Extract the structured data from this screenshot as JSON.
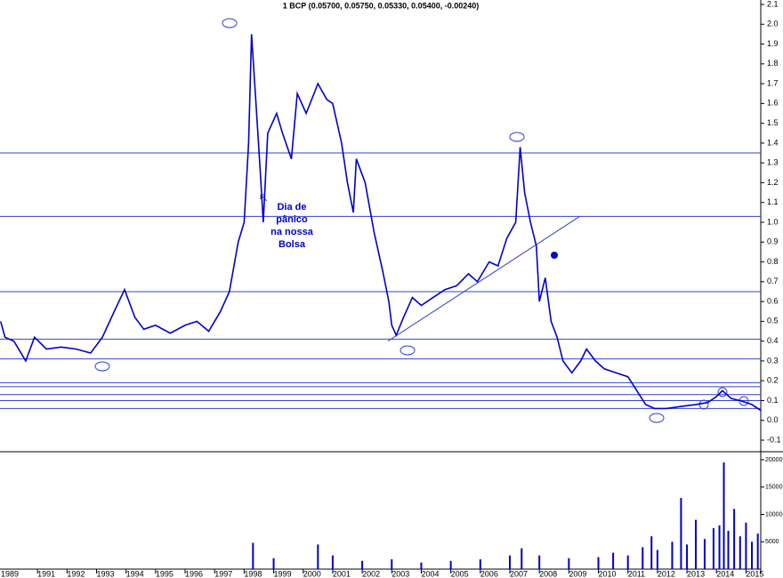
{
  "chart_data": [
    {
      "type": "line",
      "title": "1 BCP (0.05700, 0.05750, 0.05330, 0.05400, -0.00240)",
      "xlim": [
        1989.73,
        2015.5
      ],
      "xticks": [
        1989,
        1991,
        1992,
        1993,
        1994,
        1995,
        1996,
        1997,
        1998,
        1999,
        2000,
        2001,
        2002,
        2003,
        2004,
        2005,
        2006,
        2007,
        2008,
        2009,
        2010,
        2011,
        2012,
        2013,
        2014,
        2015
      ],
      "ylim": [
        -0.1,
        2.1
      ],
      "yticks": [
        2.1,
        {
          "value": 2,
          "label": "2.0"
        },
        1.9,
        1.8,
        1.7,
        1.6,
        1.5,
        1.4,
        1.3,
        1.2,
        1.1,
        {
          "value": 1,
          "label": "1.0"
        },
        0.9,
        0.8,
        0.7,
        0.6,
        0.5,
        0.4,
        0.3,
        0.2,
        0.1,
        {
          "value": 0,
          "label": "0.0"
        },
        -0.1
      ],
      "series": [
        {
          "color": "#0000cc",
          "x": [
            1989.75,
            1989.9,
            1990.2,
            1990.6,
            1990.9,
            1991.3,
            1991.8,
            1992.3,
            1992.8,
            1993.2,
            1993.6,
            1993.95,
            1994.3,
            1994.6,
            1995.0,
            1995.5,
            1996.0,
            1996.4,
            1996.8,
            1997.2,
            1997.5,
            1997.8,
            1998.0,
            1998.15,
            1998.25,
            1998.4,
            1998.55,
            1998.65,
            1998.8,
            1999.1,
            1999.3,
            1999.6,
            1999.8,
            2000.1,
            2000.5,
            2000.8,
            2001.0,
            2001.3,
            2001.5,
            2001.7,
            2001.8,
            2002.1,
            2002.4,
            2002.7,
            2002.9,
            2003.0,
            2003.15,
            2003.4,
            2003.7,
            2004.0,
            2004.4,
            2004.8,
            2005.2,
            2005.6,
            2005.9,
            2006.3,
            2006.6,
            2006.9,
            2007.2,
            2007.35,
            2007.5,
            2007.7,
            2007.9,
            2008.0,
            2008.2,
            2008.4,
            2008.6,
            2008.8,
            2009.1,
            2009.4,
            2009.6,
            2009.9,
            2010.2,
            2010.6,
            2011.0,
            2011.3,
            2011.6,
            2011.9,
            2012.3,
            2012.8,
            2013.3,
            2013.7,
            2014.0,
            2014.2,
            2014.5,
            2014.8,
            2015.2,
            2015.5
          ],
          "values": [
            0.5,
            0.42,
            0.4,
            0.3,
            0.42,
            0.36,
            0.37,
            0.36,
            0.34,
            0.42,
            0.55,
            0.66,
            0.52,
            0.46,
            0.48,
            0.44,
            0.48,
            0.5,
            0.45,
            0.55,
            0.65,
            0.9,
            1.0,
            1.4,
            1.95,
            1.6,
            1.25,
            1.0,
            1.45,
            1.55,
            1.45,
            1.32,
            1.65,
            1.55,
            1.7,
            1.62,
            1.6,
            1.4,
            1.2,
            1.05,
            1.32,
            1.2,
            0.95,
            0.75,
            0.6,
            0.48,
            0.43,
            0.52,
            0.62,
            0.58,
            0.62,
            0.66,
            0.68,
            0.74,
            0.7,
            0.8,
            0.78,
            0.92,
            1.0,
            1.38,
            1.15,
            1.0,
            0.88,
            0.6,
            0.72,
            0.5,
            0.42,
            0.3,
            0.24,
            0.3,
            0.36,
            0.3,
            0.26,
            0.24,
            0.22,
            0.15,
            0.08,
            0.06,
            0.06,
            0.07,
            0.08,
            0.09,
            0.12,
            0.15,
            0.11,
            0.1,
            0.08,
            0.05
          ]
        }
      ],
      "hlines": [
        1.35,
        1.03,
        0.65,
        0.41,
        0.31,
        0.19,
        0.17,
        0.13,
        0.1,
        0.06
      ],
      "trendline": {
        "x": [
          2002.87,
          2009.37
        ],
        "values": [
          0.4,
          1.03
        ]
      },
      "annotation": [
        "Dia de",
        "pânico",
        "na nossa",
        "Bolsa"
      ]
    },
    {
      "type": "bar",
      "xlim": [
        1989.73,
        2015.5
      ],
      "ylim": [
        0,
        20000
      ],
      "yticks": [
        5000,
        10000,
        15000,
        20000
      ],
      "color": "#0000cc",
      "x": [
        1998.3,
        1999.0,
        2000.5,
        2001.0,
        2002.0,
        2003.0,
        2004.0,
        2005.0,
        2006.0,
        2007.0,
        2007.4,
        2008.0,
        2009.0,
        2010.0,
        2010.5,
        2011.0,
        2011.5,
        2011.8,
        2012.0,
        2012.5,
        2012.8,
        2013.0,
        2013.3,
        2013.6,
        2013.9,
        2014.1,
        2014.25,
        2014.4,
        2014.6,
        2014.8,
        2015.0,
        2015.2,
        2015.4
      ],
      "values": [
        4800,
        2000,
        4500,
        2500,
        1500,
        1800,
        1200,
        1500,
        1800,
        2500,
        3800,
        2500,
        2000,
        2200,
        3000,
        2500,
        4000,
        6000,
        3500,
        5000,
        13000,
        4500,
        9000,
        5500,
        7500,
        8000,
        19500,
        7000,
        11000,
        6000,
        8500,
        5000,
        6500
      ]
    }
  ]
}
